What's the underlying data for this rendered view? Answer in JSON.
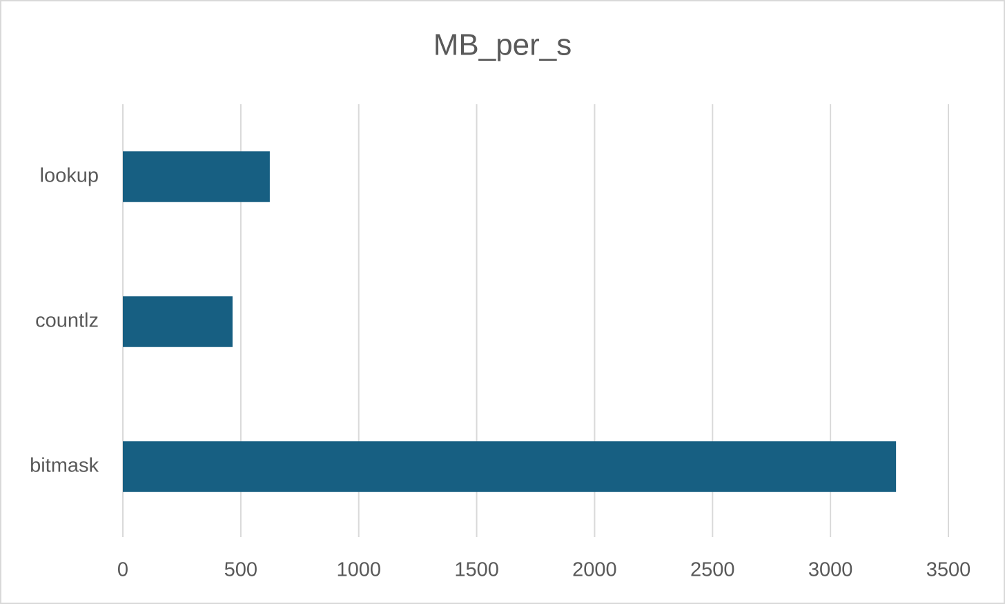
{
  "chart_data": {
    "type": "hbar",
    "title": "MB_per_s",
    "categories": [
      "lookup",
      "countlz",
      "bitmask"
    ],
    "values": [
      623,
      465,
      3278
    ],
    "color": "#175f82",
    "xlim": [
      0,
      3500
    ],
    "xticks": [
      0,
      500,
      1000,
      1500,
      2000,
      2500,
      3000,
      3500
    ],
    "grid": true
  }
}
